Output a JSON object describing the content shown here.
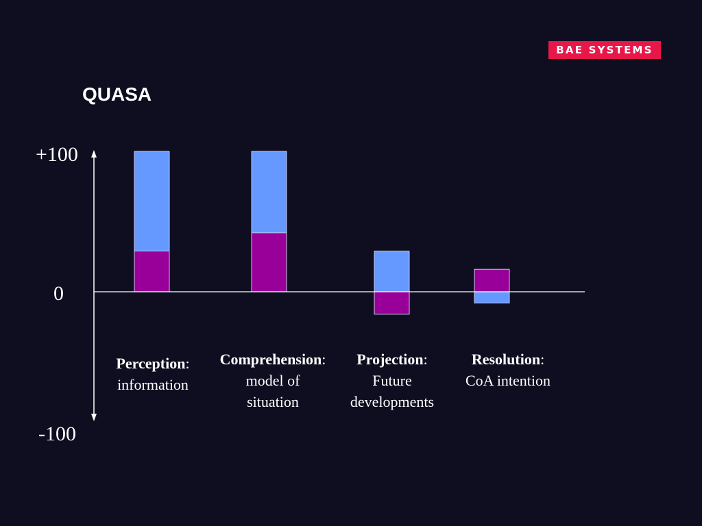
{
  "logo": {
    "text": "BAE SYSTEMS",
    "color": "#e8174a"
  },
  "slide": {
    "title": "QUASA",
    "background": "#0f0e20"
  },
  "colors": {
    "blue": "#6699ff",
    "purple": "#990099",
    "axis": "#ffffff",
    "text": "#ffffff"
  },
  "chart_data": {
    "type": "bar",
    "ylim": [
      -100,
      100
    ],
    "ytick_labels": [
      "+100",
      "0",
      "-100"
    ],
    "ytick_values": [
      100,
      0,
      -100
    ],
    "categories": [
      {
        "name": "Perception",
        "desc_line1": "information",
        "desc_line2": ""
      },
      {
        "name": "Comprehension",
        "desc_line1": "model of",
        "desc_line2": "situation"
      },
      {
        "name": "Projection",
        "desc_line1": "Future",
        "desc_line2": "developments"
      },
      {
        "name": "Resolution",
        "desc_line1": "CoA intention",
        "desc_line2": ""
      }
    ],
    "series": [
      {
        "color": "#6699ff",
        "values": [
          100,
          100,
          29,
          -8
        ]
      },
      {
        "color": "#990099",
        "values": [
          29,
          42,
          -16,
          16
        ]
      }
    ],
    "layering": "purple drawn in front of blue"
  }
}
